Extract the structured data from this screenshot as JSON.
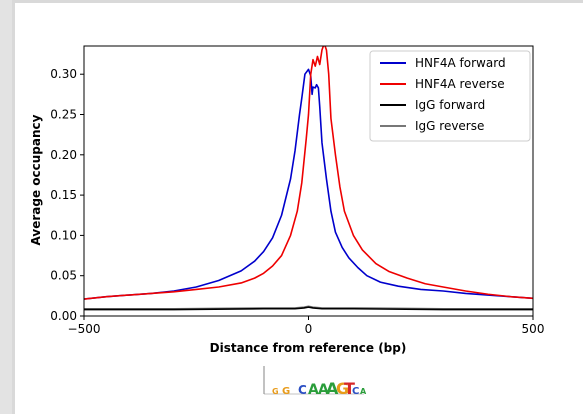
{
  "chart_data": {
    "type": "line",
    "xlabel": "Distance from reference (bp)",
    "ylabel": "Average occupancy",
    "xlim": [
      -500,
      500
    ],
    "ylim": [
      0.0,
      0.335
    ],
    "x_ticks": [
      -500,
      0,
      500
    ],
    "x_tick_labels": [
      "−500",
      "0",
      "500"
    ],
    "y_ticks": [
      0.0,
      0.05,
      0.1,
      0.15,
      0.2,
      0.25,
      0.3
    ],
    "y_tick_labels": [
      "0.00",
      "0.05",
      "0.10",
      "0.15",
      "0.20",
      "0.25",
      "0.30"
    ],
    "grid": false,
    "legend_position": "top-right",
    "series": [
      {
        "name": "HNF4A forward",
        "color": "#0000cc",
        "points": [
          [
            -500,
            0.021
          ],
          [
            -450,
            0.024
          ],
          [
            -400,
            0.026
          ],
          [
            -350,
            0.028
          ],
          [
            -300,
            0.031
          ],
          [
            -250,
            0.036
          ],
          [
            -200,
            0.044
          ],
          [
            -150,
            0.056
          ],
          [
            -120,
            0.068
          ],
          [
            -100,
            0.08
          ],
          [
            -80,
            0.097
          ],
          [
            -60,
            0.125
          ],
          [
            -40,
            0.17
          ],
          [
            -30,
            0.205
          ],
          [
            -20,
            0.25
          ],
          [
            -15,
            0.27
          ],
          [
            -8,
            0.3
          ],
          [
            0,
            0.306
          ],
          [
            5,
            0.298
          ],
          [
            8,
            0.275
          ],
          [
            10,
            0.284
          ],
          [
            15,
            0.283
          ],
          [
            18,
            0.287
          ],
          [
            22,
            0.283
          ],
          [
            25,
            0.26
          ],
          [
            30,
            0.215
          ],
          [
            40,
            0.17
          ],
          [
            50,
            0.13
          ],
          [
            60,
            0.104
          ],
          [
            75,
            0.085
          ],
          [
            90,
            0.072
          ],
          [
            110,
            0.06
          ],
          [
            130,
            0.05
          ],
          [
            160,
            0.042
          ],
          [
            200,
            0.037
          ],
          [
            250,
            0.033
          ],
          [
            300,
            0.031
          ],
          [
            350,
            0.028
          ],
          [
            400,
            0.026
          ],
          [
            450,
            0.024
          ],
          [
            500,
            0.022
          ]
        ]
      },
      {
        "name": "HNF4A reverse",
        "color": "#ee0000",
        "points": [
          [
            -500,
            0.021
          ],
          [
            -450,
            0.024
          ],
          [
            -400,
            0.026
          ],
          [
            -350,
            0.028
          ],
          [
            -300,
            0.03
          ],
          [
            -250,
            0.033
          ],
          [
            -200,
            0.036
          ],
          [
            -150,
            0.041
          ],
          [
            -120,
            0.047
          ],
          [
            -100,
            0.053
          ],
          [
            -80,
            0.062
          ],
          [
            -60,
            0.075
          ],
          [
            -40,
            0.1
          ],
          [
            -25,
            0.13
          ],
          [
            -15,
            0.165
          ],
          [
            -5,
            0.22
          ],
          [
            0,
            0.25
          ],
          [
            5,
            0.3
          ],
          [
            10,
            0.318
          ],
          [
            15,
            0.31
          ],
          [
            20,
            0.322
          ],
          [
            25,
            0.312
          ],
          [
            30,
            0.33
          ],
          [
            35,
            0.338
          ],
          [
            40,
            0.33
          ],
          [
            45,
            0.3
          ],
          [
            50,
            0.245
          ],
          [
            60,
            0.2
          ],
          [
            70,
            0.16
          ],
          [
            80,
            0.13
          ],
          [
            100,
            0.1
          ],
          [
            120,
            0.082
          ],
          [
            150,
            0.065
          ],
          [
            180,
            0.055
          ],
          [
            220,
            0.047
          ],
          [
            260,
            0.04
          ],
          [
            300,
            0.036
          ],
          [
            350,
            0.031
          ],
          [
            400,
            0.027
          ],
          [
            450,
            0.024
          ],
          [
            500,
            0.022
          ]
        ]
      },
      {
        "name": "IgG forward",
        "color": "#000000",
        "points": [
          [
            -500,
            0.008
          ],
          [
            -300,
            0.008
          ],
          [
            -100,
            0.009
          ],
          [
            -30,
            0.009
          ],
          [
            -10,
            0.01
          ],
          [
            0,
            0.011
          ],
          [
            10,
            0.01
          ],
          [
            30,
            0.009
          ],
          [
            100,
            0.009
          ],
          [
            300,
            0.008
          ],
          [
            500,
            0.008
          ]
        ]
      },
      {
        "name": "IgG reverse",
        "color": "#777777",
        "points": [
          [
            -500,
            0.009
          ],
          [
            -300,
            0.009
          ],
          [
            -100,
            0.01
          ],
          [
            -30,
            0.01
          ],
          [
            -10,
            0.011
          ],
          [
            0,
            0.012
          ],
          [
            10,
            0.011
          ],
          [
            30,
            0.01
          ],
          [
            100,
            0.01
          ],
          [
            300,
            0.009
          ],
          [
            500,
            0.009
          ]
        ]
      }
    ]
  },
  "motif": {
    "letters": [
      {
        "ch": "G",
        "color": "#e89b1a"
      },
      {
        "ch": "G",
        "color": "#e89b1a"
      },
      {
        "ch": "C",
        "color": "#2b4fc4"
      },
      {
        "ch": "A",
        "color": "#2a9d3a"
      },
      {
        "ch": "A",
        "color": "#2a9d3a"
      },
      {
        "ch": "A",
        "color": "#2a9d3a"
      },
      {
        "ch": "G",
        "color": "#e89b1a"
      },
      {
        "ch": "T",
        "color": "#d62728"
      },
      {
        "ch": "C",
        "color": "#2b4fc4"
      },
      {
        "ch": "A",
        "color": "#2a9d3a"
      }
    ]
  }
}
